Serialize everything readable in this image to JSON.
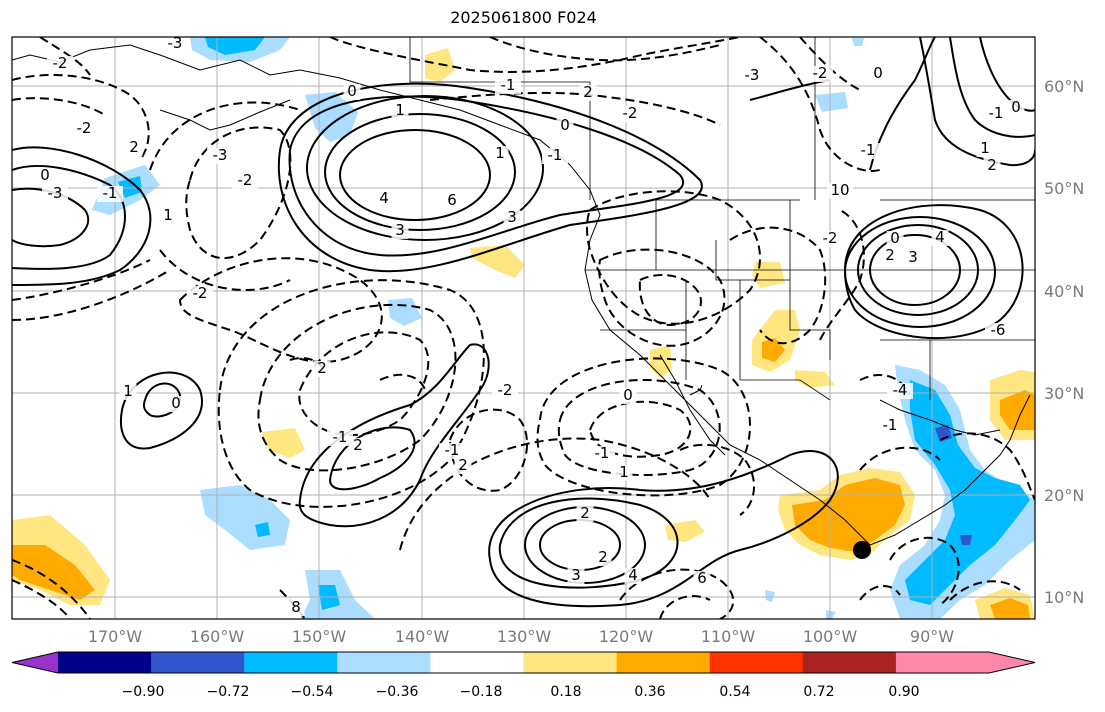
{
  "title": "2025061800 F024",
  "map": {
    "lat_labels": [
      "60°N",
      "50°N",
      "40°N",
      "30°N",
      "20°N",
      "10°N"
    ],
    "lon_labels": [
      "170°W",
      "160°W",
      "150°W",
      "140°W",
      "130°W",
      "120°W",
      "110°W",
      "100°W",
      "90°W"
    ],
    "contour_labels": [
      "-3",
      "-2",
      "0",
      "1",
      "-1",
      "2",
      "-2",
      "0",
      "1",
      "-1",
      "3",
      "4",
      "6",
      "3",
      "-2",
      "2",
      "-3",
      "-3",
      "0",
      "-1",
      "1",
      "-2",
      "-2",
      "2",
      "1",
      "0",
      "-1",
      "2",
      "-1",
      "2",
      "-2",
      "0",
      "-1",
      "1",
      "2",
      "2",
      "3",
      "4",
      "6",
      "8",
      "10",
      "-1",
      "-2",
      "0",
      "2",
      "3",
      "4",
      "1",
      "2",
      "-1",
      "0",
      "-1",
      "-4",
      "-6",
      "-3",
      "-2",
      "0"
    ]
  },
  "colorbar": {
    "ticks": [
      "−0.90",
      "−0.72",
      "−0.54",
      "−0.36",
      "−0.18",
      "0.18",
      "0.36",
      "0.54",
      "0.72",
      "0.90"
    ],
    "colors": [
      "#9933cc",
      "#000088",
      "#3355cc",
      "#00bbff",
      "#aaddff",
      "#ffffff",
      "#ffe680",
      "#ffaa00",
      "#ff3300",
      "#aa2222",
      "#ff88aa",
      "#ff88aa"
    ]
  },
  "marker": "storm-center-dot"
}
